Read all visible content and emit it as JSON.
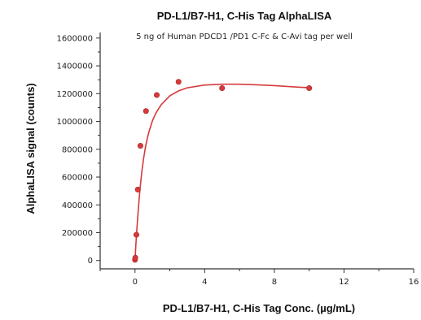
{
  "chart_data": {
    "type": "scatter",
    "title": "PD-L1/B7-H1, C-His Tag AlphaLISA",
    "subtitle": "5 ng of Human PDCD1 /PD1 C-Fc & C-Avi tag per well",
    "xlabel": "PD-L1/B7-H1, C-His Tag Conc. (µg/mL)",
    "ylabel": "AlphaLISA signal (counts)",
    "xlim": [
      -2,
      16
    ],
    "ylim": [
      -60000,
      1640000
    ],
    "x_ticks": [
      0,
      4,
      8,
      12,
      16
    ],
    "y_ticks": [
      0,
      200000,
      400000,
      600000,
      800000,
      1000000,
      1200000,
      1400000,
      1600000
    ],
    "x_tick_labels": [
      "0",
      "4",
      "8",
      "12",
      "16"
    ],
    "y_tick_labels": [
      "0",
      "200000",
      "400000",
      "600000",
      "800000",
      "1000000",
      "1200000",
      "1400000",
      "1600000"
    ],
    "grid": false,
    "legend": "none",
    "series": [
      {
        "x": [
          0.0,
          0.02,
          0.08,
          0.16,
          0.31,
          0.63,
          1.25,
          2.5,
          5,
          10
        ],
        "y": [
          5000,
          20000,
          185000,
          510000,
          825000,
          1075000,
          1190000,
          1285000,
          1240000,
          1240000
        ],
        "marker": "circle",
        "color": "#d63a3a"
      }
    ],
    "fit_curve": {
      "color": "#d63a3a",
      "model": "fitted saturation curve",
      "x": [
        0.0,
        0.05,
        0.1,
        0.15,
        0.2,
        0.25,
        0.3,
        0.4,
        0.5,
        0.6,
        0.7,
        0.8,
        1.0,
        1.2,
        1.5,
        2.0,
        2.5,
        3.0,
        4.0,
        5.0,
        6.0,
        7.0,
        8.0,
        9.0,
        10.0
      ],
      "y": [
        0,
        110000,
        210000,
        300000,
        385000,
        460000,
        530000,
        645000,
        740000,
        815000,
        875000,
        925000,
        1005000,
        1060000,
        1120000,
        1185000,
        1220000,
        1242000,
        1262000,
        1268000,
        1268000,
        1264000,
        1258000,
        1250000,
        1242000
      ]
    }
  }
}
